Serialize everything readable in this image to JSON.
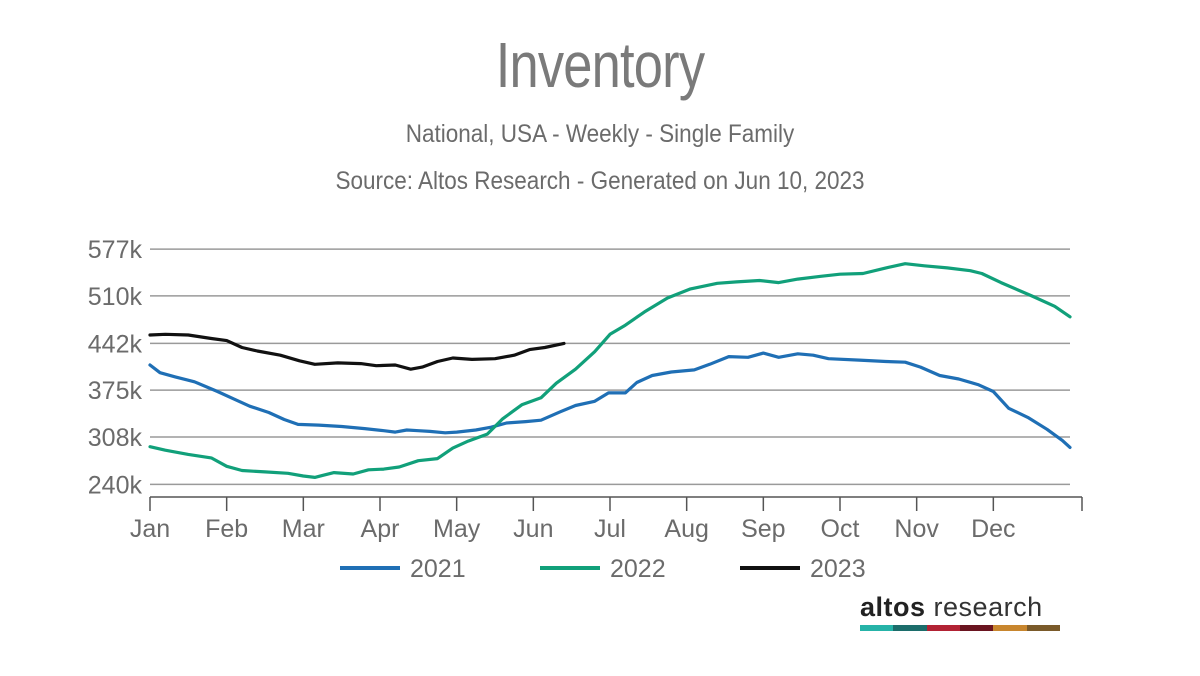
{
  "header": {
    "title": "Inventory",
    "subtitle": "National, USA - Weekly - Single Family",
    "source": "Source: Altos Research - Generated on Jun 10, 2023"
  },
  "logo": {
    "word1": "altos",
    "word2": "research",
    "bar_colors": [
      "#26b3a8",
      "#1c6d6b",
      "#b22234",
      "#6a1420",
      "#c8862e",
      "#7a5a2a"
    ]
  },
  "chart_data": {
    "type": "line",
    "title": "Inventory",
    "xlabel": "",
    "ylabel": "",
    "x_ticks": [
      "Jan",
      "Feb",
      "Mar",
      "Apr",
      "May",
      "Jun",
      "Jul",
      "Aug",
      "Sep",
      "Oct",
      "Nov",
      "Dec"
    ],
    "y_ticks": [
      240,
      308,
      375,
      442,
      510,
      577
    ],
    "y_tick_labels": [
      "240k",
      "308k",
      "375k",
      "442k",
      "510k",
      "577k"
    ],
    "ylim": [
      222,
      590
    ],
    "xlim": [
      0,
      12
    ],
    "x_unit": "month (0 = Jan 1)",
    "y_unit": "thousands of listings",
    "grid": true,
    "legend_position": "bottom",
    "series": [
      {
        "name": "2021",
        "color": "#1f6fb5",
        "points": [
          [
            0.0,
            411
          ],
          [
            0.13,
            400
          ],
          [
            0.33,
            394
          ],
          [
            0.58,
            387
          ],
          [
            0.88,
            373
          ],
          [
            1.1,
            362
          ],
          [
            1.3,
            352
          ],
          [
            1.55,
            343
          ],
          [
            1.75,
            333
          ],
          [
            1.93,
            326
          ],
          [
            2.2,
            325
          ],
          [
            2.5,
            323
          ],
          [
            2.8,
            320
          ],
          [
            3.05,
            317
          ],
          [
            3.2,
            315
          ],
          [
            3.35,
            318
          ],
          [
            3.5,
            317
          ],
          [
            3.65,
            316
          ],
          [
            3.85,
            314
          ],
          [
            4.0,
            315
          ],
          [
            4.25,
            318
          ],
          [
            4.45,
            322
          ],
          [
            4.65,
            328
          ],
          [
            4.9,
            330
          ],
          [
            5.1,
            332
          ],
          [
            5.35,
            344
          ],
          [
            5.55,
            353
          ],
          [
            5.8,
            359
          ],
          [
            5.98,
            371
          ],
          [
            6.2,
            371
          ],
          [
            6.35,
            386
          ],
          [
            6.55,
            396
          ],
          [
            6.8,
            401
          ],
          [
            7.1,
            404
          ],
          [
            7.3,
            412
          ],
          [
            7.55,
            423
          ],
          [
            7.8,
            422
          ],
          [
            8.0,
            428
          ],
          [
            8.2,
            422
          ],
          [
            8.45,
            427
          ],
          [
            8.65,
            425
          ],
          [
            8.85,
            420
          ],
          [
            9.25,
            418
          ],
          [
            9.6,
            416
          ],
          [
            9.85,
            415
          ],
          [
            10.05,
            408
          ],
          [
            10.3,
            396
          ],
          [
            10.55,
            391
          ],
          [
            10.8,
            383
          ],
          [
            11.0,
            373
          ],
          [
            11.2,
            349
          ],
          [
            11.45,
            336
          ],
          [
            11.7,
            319
          ],
          [
            11.9,
            303
          ],
          [
            12.0,
            293
          ]
        ]
      },
      {
        "name": "2022",
        "color": "#11a07a",
        "points": [
          [
            0.0,
            294
          ],
          [
            0.2,
            289
          ],
          [
            0.5,
            283
          ],
          [
            0.8,
            278
          ],
          [
            1.0,
            266
          ],
          [
            1.2,
            260
          ],
          [
            1.5,
            258
          ],
          [
            1.8,
            256
          ],
          [
            2.0,
            252
          ],
          [
            2.15,
            250
          ],
          [
            2.25,
            253
          ],
          [
            2.4,
            257
          ],
          [
            2.65,
            255
          ],
          [
            2.85,
            261
          ],
          [
            3.05,
            262
          ],
          [
            3.25,
            265
          ],
          [
            3.5,
            274
          ],
          [
            3.75,
            277
          ],
          [
            3.95,
            292
          ],
          [
            4.15,
            302
          ],
          [
            4.4,
            312
          ],
          [
            4.6,
            334
          ],
          [
            4.85,
            354
          ],
          [
            5.1,
            364
          ],
          [
            5.3,
            385
          ],
          [
            5.55,
            405
          ],
          [
            5.8,
            430
          ],
          [
            6.0,
            455
          ],
          [
            6.2,
            468
          ],
          [
            6.45,
            487
          ],
          [
            6.75,
            507
          ],
          [
            7.05,
            520
          ],
          [
            7.4,
            528
          ],
          [
            7.65,
            530
          ],
          [
            7.95,
            532
          ],
          [
            8.2,
            529
          ],
          [
            8.45,
            534
          ],
          [
            8.75,
            538
          ],
          [
            9.0,
            541
          ],
          [
            9.3,
            542
          ],
          [
            9.6,
            550
          ],
          [
            9.85,
            556
          ],
          [
            10.1,
            553
          ],
          [
            10.4,
            550
          ],
          [
            10.7,
            546
          ],
          [
            10.85,
            542
          ],
          [
            11.1,
            529
          ],
          [
            11.5,
            510
          ],
          [
            11.8,
            495
          ],
          [
            12.0,
            480
          ]
        ]
      },
      {
        "name": "2023",
        "color": "#111111",
        "points": [
          [
            0.0,
            454
          ],
          [
            0.2,
            455
          ],
          [
            0.5,
            454
          ],
          [
            0.8,
            449
          ],
          [
            1.0,
            446
          ],
          [
            1.2,
            436
          ],
          [
            1.4,
            431
          ],
          [
            1.7,
            425
          ],
          [
            1.95,
            417
          ],
          [
            2.15,
            412
          ],
          [
            2.45,
            414
          ],
          [
            2.75,
            413
          ],
          [
            2.95,
            410
          ],
          [
            3.2,
            411
          ],
          [
            3.4,
            405
          ],
          [
            3.55,
            408
          ],
          [
            3.75,
            416
          ],
          [
            3.95,
            421
          ],
          [
            4.2,
            419
          ],
          [
            4.5,
            420
          ],
          [
            4.75,
            425
          ],
          [
            4.95,
            433
          ],
          [
            5.15,
            436
          ],
          [
            5.4,
            442
          ]
        ]
      }
    ]
  }
}
